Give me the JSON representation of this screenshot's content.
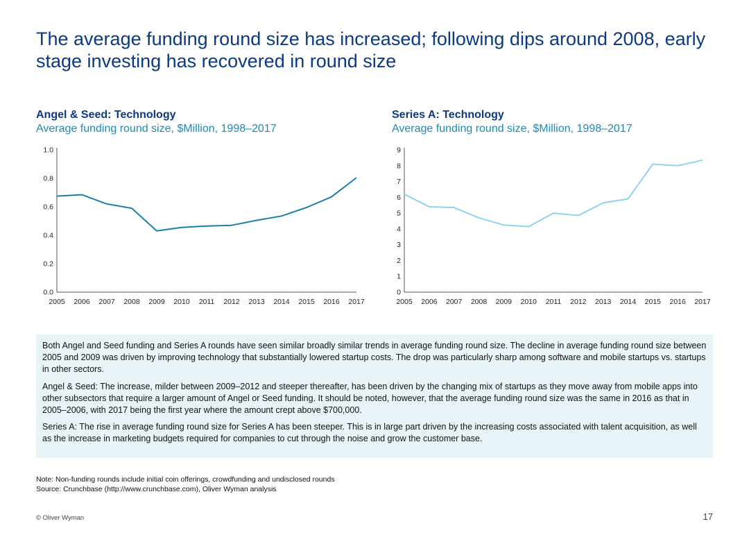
{
  "page": {
    "title": "The average funding round size has increased; following dips around 2008, early stage investing has recovered in round size"
  },
  "chart_data": [
    {
      "type": "line",
      "title": "Angel & Seed: Technology",
      "subtitle": "Average funding round size, $Million, 1998–2017",
      "color": "#1a7fad",
      "x": [
        "2005",
        "2006",
        "2007",
        "2008",
        "2009",
        "2010",
        "2011",
        "2012",
        "2013",
        "2014",
        "2015",
        "2016",
        "2017"
      ],
      "points": [
        {
          "x": 2005.0,
          "y": 0.675
        },
        {
          "x": 2005.5,
          "y": 0.68
        },
        {
          "x": 2006.0,
          "y": 0.685
        },
        {
          "x": 2007.0,
          "y": 0.62
        },
        {
          "x": 2008.0,
          "y": 0.59
        },
        {
          "x": 2009.0,
          "y": 0.43
        },
        {
          "x": 2010.0,
          "y": 0.455
        },
        {
          "x": 2011.0,
          "y": 0.465
        },
        {
          "x": 2012.0,
          "y": 0.47
        },
        {
          "x": 2013.0,
          "y": 0.505
        },
        {
          "x": 2014.0,
          "y": 0.535
        },
        {
          "x": 2015.0,
          "y": 0.595
        },
        {
          "x": 2016.0,
          "y": 0.67
        },
        {
          "x": 2017.0,
          "y": 0.805
        }
      ],
      "ylim": [
        0,
        1.0
      ],
      "yticks": [
        "0.0",
        "0.2",
        "0.4",
        "0.6",
        "0.8",
        "1.0"
      ],
      "grid": false
    },
    {
      "type": "line",
      "title": "Series A: Technology",
      "subtitle": "Average funding round size, $Million, 1998–2017",
      "color": "#8fd3ec",
      "x": [
        "2005",
        "2006",
        "2007",
        "2008",
        "2009",
        "2010",
        "2011",
        "2012",
        "2013",
        "2014",
        "2015",
        "2016",
        "2017"
      ],
      "points": [
        {
          "x": 2005,
          "y": 6.2
        },
        {
          "x": 2006,
          "y": 5.4
        },
        {
          "x": 2007,
          "y": 5.35
        },
        {
          "x": 2008,
          "y": 4.7
        },
        {
          "x": 2009,
          "y": 4.25
        },
        {
          "x": 2010,
          "y": 4.15
        },
        {
          "x": 2011,
          "y": 5.0
        },
        {
          "x": 2012,
          "y": 4.85
        },
        {
          "x": 2013,
          "y": 5.65
        },
        {
          "x": 2014,
          "y": 5.9
        },
        {
          "x": 2015,
          "y": 8.1
        },
        {
          "x": 2016,
          "y": 8.0
        },
        {
          "x": 2017,
          "y": 8.35
        }
      ],
      "ylim": [
        0,
        9
      ],
      "yticks": [
        "0",
        "1",
        "2",
        "3",
        "4",
        "5",
        "6",
        "7",
        "8",
        "9"
      ],
      "grid": false
    }
  ],
  "commentary": {
    "p1": "Both Angel and Seed funding and Series A rounds have seen similar broadly similar trends in average funding round size. The decline in average funding round size between 2005 and 2009 was driven by improving technology that substantially lowered startup costs. The drop was particularly sharp among software and mobile startups vs. startups in other sectors.",
    "p2": "Angel & Seed: The increase, milder between 2009–2012 and steeper thereafter, has been driven by the changing mix of startups as they move away from mobile apps into other subsectors that require a larger amount of Angel or Seed funding. It should be noted, however, that the average funding round size was the same in 2016 as that in 2005–2006, with 2017 being the first year where the amount crept above $700,000.",
    "p3": "Series A: The rise in average funding round size for Series A has been steeper. This is in large part driven by the increasing costs associated with talent acquisition, as well as the increase in marketing budgets required for companies to cut through the noise and grow the customer base."
  },
  "notes": {
    "note": "Note: Non-funding rounds include initial coin offerings, crowdfunding and undisclosed rounds",
    "source": "Source: Crunchbase (http://www.crunchbase.com), Oliver Wyman analysis"
  },
  "footer": {
    "copyright": "© Oliver Wyman",
    "page_number": "17"
  },
  "colors": {
    "title": "#0b3a82",
    "chart_title": "#0b3a82",
    "chart_subtitle": "#1a8bb8",
    "commentary_bg": "#e9f4f8"
  }
}
